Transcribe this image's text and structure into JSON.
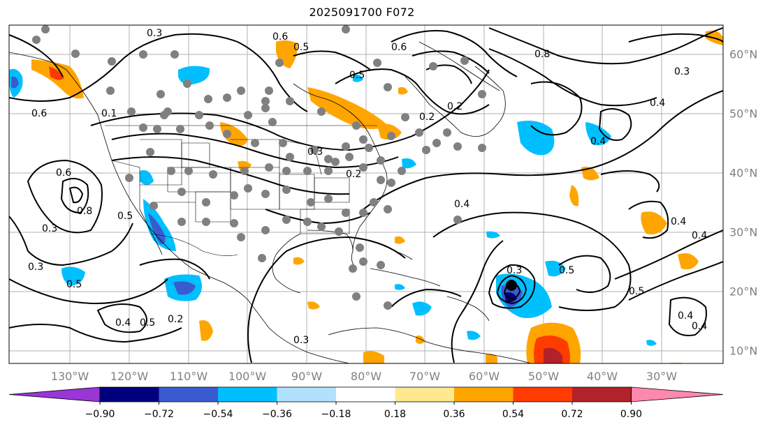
{
  "title": "2025091700 F072",
  "lon_labels": [
    "130°W",
    "120°W",
    "110°W",
    "100°W",
    "90°W",
    "80°W",
    "70°W",
    "60°W",
    "50°W",
    "40°W",
    "30°W"
  ],
  "lat_labels": [
    "60°N",
    "50°N",
    "40°N",
    "30°N",
    "20°N",
    "10°N"
  ],
  "colorbar": {
    "colors": [
      "#9a35d6",
      "#00007f",
      "#3a5bd0",
      "#00bfff",
      "#b0e2ff",
      "#ffffff",
      "#ffe98f",
      "#ffa500",
      "#ff3b00",
      "#b2222a",
      "#ff88ad"
    ],
    "labels": [
      "−0.90",
      "−0.72",
      "−0.54",
      "−0.36",
      "−0.18",
      "0.18",
      "0.36",
      "0.54",
      "0.72",
      "0.90"
    ]
  },
  "contour_labels": [
    "0.3",
    "0.6",
    "0.5",
    "0.6",
    "0.8",
    "0.5",
    "0.2",
    "0.6",
    "0.4",
    "0.4",
    "0.4",
    "0.3",
    "0.6",
    "0.8",
    "0.5",
    "0.3",
    "0.5",
    "0.4",
    "0.5",
    "0.2",
    "0.4",
    "0.4",
    "0.5",
    "0.3",
    "0.2",
    "0.3",
    "0.5",
    "0.4",
    "0.4",
    "0.3",
    "0.2",
    "0.3",
    "0.1"
  ]
}
